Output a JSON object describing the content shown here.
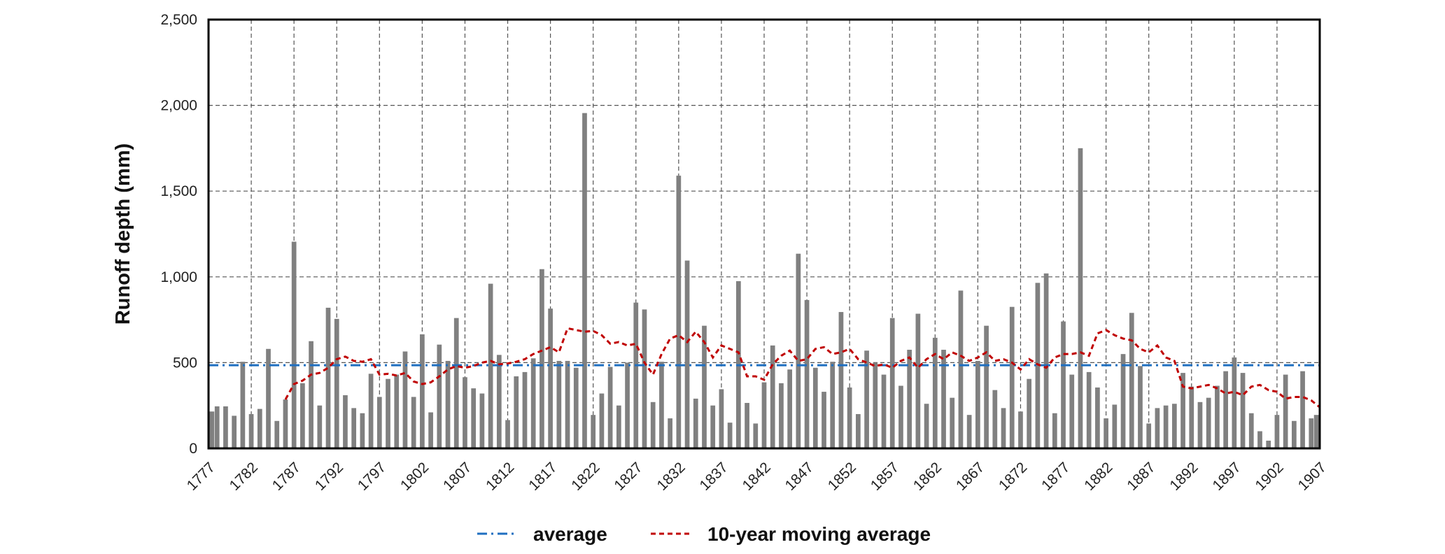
{
  "chart_data": {
    "type": "bar",
    "ylabel": "Runoff depth (mm)",
    "ylim": [
      0,
      2500
    ],
    "yticks": [
      0,
      500,
      1000,
      1500,
      2000,
      2500
    ],
    "ytick_labels": [
      "0",
      "500",
      "1,000",
      "1,500",
      "2,000",
      "2,500"
    ],
    "xticks": [
      1777,
      1782,
      1787,
      1792,
      1797,
      1802,
      1807,
      1812,
      1817,
      1822,
      1827,
      1832,
      1837,
      1842,
      1847,
      1852,
      1857,
      1862,
      1867,
      1872,
      1877,
      1882,
      1887,
      1892,
      1897,
      1902,
      1907
    ],
    "grid": true,
    "legend_position": "bottom",
    "x_start": 1777,
    "x_end": 1907,
    "series": [
      {
        "kind": "bar",
        "color": "#808080",
        "years": [
          1777,
          1778,
          1779,
          1780,
          1781,
          1782,
          1783,
          1784,
          1785,
          1786,
          1787,
          1788,
          1789,
          1790,
          1791,
          1792,
          1793,
          1794,
          1795,
          1796,
          1797,
          1798,
          1799,
          1800,
          1801,
          1802,
          1803,
          1804,
          1805,
          1806,
          1807,
          1808,
          1809,
          1810,
          1811,
          1812,
          1813,
          1814,
          1815,
          1816,
          1817,
          1818,
          1819,
          1820,
          1821,
          1822,
          1823,
          1824,
          1825,
          1826,
          1827,
          1828,
          1829,
          1830,
          1831,
          1832,
          1833,
          1834,
          1835,
          1836,
          1837,
          1838,
          1839,
          1840,
          1841,
          1842,
          1843,
          1844,
          1845,
          1846,
          1847,
          1848,
          1849,
          1850,
          1851,
          1852,
          1853,
          1854,
          1855,
          1856,
          1857,
          1858,
          1859,
          1860,
          1861,
          1862,
          1863,
          1864,
          1865,
          1866,
          1867,
          1868,
          1869,
          1870,
          1871,
          1872,
          1873,
          1874,
          1875,
          1876,
          1877,
          1878,
          1879,
          1880,
          1881,
          1882,
          1883,
          1884,
          1885,
          1886,
          1887,
          1888,
          1889,
          1890,
          1891,
          1892,
          1893,
          1894,
          1895,
          1896,
          1897,
          1898,
          1899,
          1900,
          1901,
          1902,
          1903,
          1904,
          1905,
          1906,
          1907
        ],
        "values": [
          215,
          245,
          245,
          190,
          505,
          200,
          230,
          580,
          160,
          285,
          1205,
          380,
          625,
          250,
          820,
          755,
          310,
          235,
          205,
          435,
          300,
          405,
          430,
          565,
          300,
          665,
          210,
          605,
          510,
          760,
          415,
          350,
          320,
          960,
          545,
          165,
          420,
          445,
          525,
          1045,
          815,
          510,
          510,
          470,
          1955,
          195,
          320,
          475,
          250,
          500,
          850,
          810,
          270,
          505,
          175,
          1590,
          1095,
          290,
          715,
          250,
          345,
          150,
          975,
          265,
          145,
          385,
          600,
          380,
          460,
          1135,
          865,
          470,
          330,
          505,
          795,
          355,
          200,
          570,
          500,
          430,
          760,
          365,
          575,
          785,
          260,
          645,
          575,
          295,
          920,
          195,
          510,
          715,
          340,
          235,
          825,
          215,
          405,
          965,
          1020,
          205,
          740,
          430,
          1750,
          445,
          355,
          175,
          255,
          550,
          790,
          480,
          145,
          235,
          250,
          260,
          440,
          360,
          270,
          295,
          365,
          450,
          530,
          440,
          205,
          100,
          45,
          195,
          430,
          160,
          450,
          175,
          195
        ]
      },
      {
        "kind": "line",
        "name": "average",
        "color": "#1f6fc0",
        "value": 485
      },
      {
        "kind": "line",
        "name": "10-year moving average",
        "color": "#c00000",
        "years": [
          1786,
          1787,
          1788,
          1789,
          1790,
          1791,
          1792,
          1793,
          1794,
          1795,
          1796,
          1797,
          1798,
          1799,
          1800,
          1801,
          1802,
          1803,
          1804,
          1805,
          1806,
          1807,
          1808,
          1809,
          1810,
          1811,
          1812,
          1813,
          1814,
          1815,
          1816,
          1817,
          1818,
          1819,
          1820,
          1821,
          1822,
          1823,
          1824,
          1825,
          1826,
          1827,
          1828,
          1829,
          1830,
          1831,
          1832,
          1833,
          1834,
          1835,
          1836,
          1837,
          1838,
          1839,
          1840,
          1841,
          1842,
          1843,
          1844,
          1845,
          1846,
          1847,
          1848,
          1849,
          1850,
          1851,
          1852,
          1853,
          1854,
          1855,
          1856,
          1857,
          1858,
          1859,
          1860,
          1861,
          1862,
          1863,
          1864,
          1865,
          1866,
          1867,
          1868,
          1869,
          1870,
          1871,
          1872,
          1873,
          1874,
          1875,
          1876,
          1877,
          1878,
          1879,
          1880,
          1881,
          1882,
          1883,
          1884,
          1885,
          1886,
          1887,
          1888,
          1889,
          1890,
          1891,
          1892,
          1893,
          1894,
          1895,
          1896,
          1897,
          1898,
          1899,
          1900,
          1901,
          1902,
          1903,
          1904,
          1905,
          1906,
          1907
        ],
        "values": [
          285,
          375,
          395,
          430,
          440,
          470,
          520,
          535,
          510,
          505,
          520,
          430,
          435,
          425,
          440,
          390,
          375,
          385,
          420,
          460,
          480,
          470,
          480,
          500,
          510,
          490,
          495,
          505,
          520,
          550,
          570,
          590,
          560,
          700,
          690,
          680,
          685,
          660,
          610,
          620,
          600,
          610,
          500,
          430,
          550,
          640,
          660,
          620,
          680,
          620,
          530,
          600,
          580,
          560,
          420,
          420,
          400,
          490,
          540,
          570,
          510,
          520,
          580,
          590,
          550,
          560,
          580,
          520,
          500,
          480,
          490,
          470,
          510,
          530,
          470,
          520,
          550,
          520,
          560,
          540,
          510,
          530,
          560,
          510,
          520,
          500,
          460,
          520,
          490,
          470,
          530,
          550,
          550,
          560,
          540,
          670,
          690,
          660,
          640,
          630,
          580,
          560,
          600,
          530,
          510,
          360,
          350,
          360,
          370,
          350,
          320,
          330,
          310,
          360,
          370,
          340,
          330,
          290,
          300,
          300,
          280,
          240
        ]
      }
    ]
  },
  "legend": {
    "average_label": "average",
    "moving_label": "10-year moving average"
  }
}
